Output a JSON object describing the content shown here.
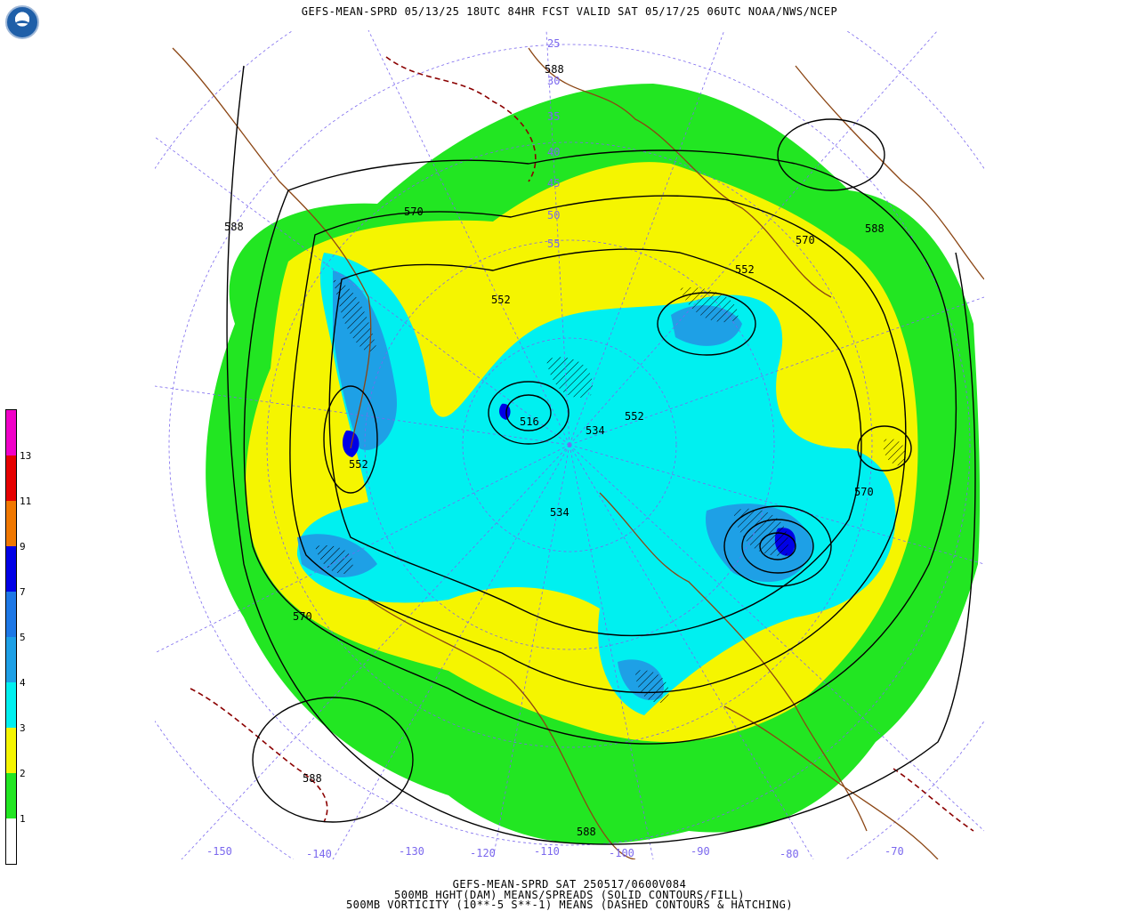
{
  "header": {
    "title": "GEFS-MEAN-SPRD 05/13/25 18UTC 84HR FCST VALID SAT 05/17/25 06UTC NOAA/NWS/NCEP"
  },
  "colorbar": {
    "segments": [
      {
        "label": "1",
        "color": "#ffffff"
      },
      {
        "label": "2",
        "color": "#22e622"
      },
      {
        "label": "3",
        "color": "#f5f500"
      },
      {
        "label": "4",
        "color": "#00f0f0"
      },
      {
        "label": "5",
        "color": "#1ea0e6"
      },
      {
        "label": "7",
        "color": "#1e78e6"
      },
      {
        "label": "9",
        "color": "#0000e6"
      },
      {
        "label": "11",
        "color": "#f07800"
      },
      {
        "label": "13",
        "color": "#e60000"
      },
      {
        "label": "",
        "color": "#f000c8"
      }
    ]
  },
  "map": {
    "contour_labels": [
      "588",
      "588",
      "588",
      "588",
      "588",
      "570",
      "570",
      "570",
      "570",
      "552",
      "552",
      "552",
      "552",
      "534",
      "534",
      "516"
    ],
    "lat_labels": [
      "25",
      "30",
      "35",
      "40",
      "45",
      "50",
      "55"
    ],
    "lon_labels": [
      "-150",
      "-140",
      "-130",
      "-120",
      "-110",
      "-100",
      "-90",
      "-80",
      "-70"
    ],
    "colors": {
      "coast": "#8b4513",
      "graticule": "#7b68ee",
      "contour": "#000000",
      "vorticity": "#8b0000"
    }
  },
  "footer": {
    "line1": "GEFS-MEAN-SPRD SAT 250517/0600V084",
    "line2": "500MB HGHT(DAM) MEANS/SPREADS (SOLID CONTOURS/FILL)",
    "line3": "500MB VORTICITY (10**-5 S**-1) MEANS (DASHED CONTOURS & HATCHING)"
  }
}
